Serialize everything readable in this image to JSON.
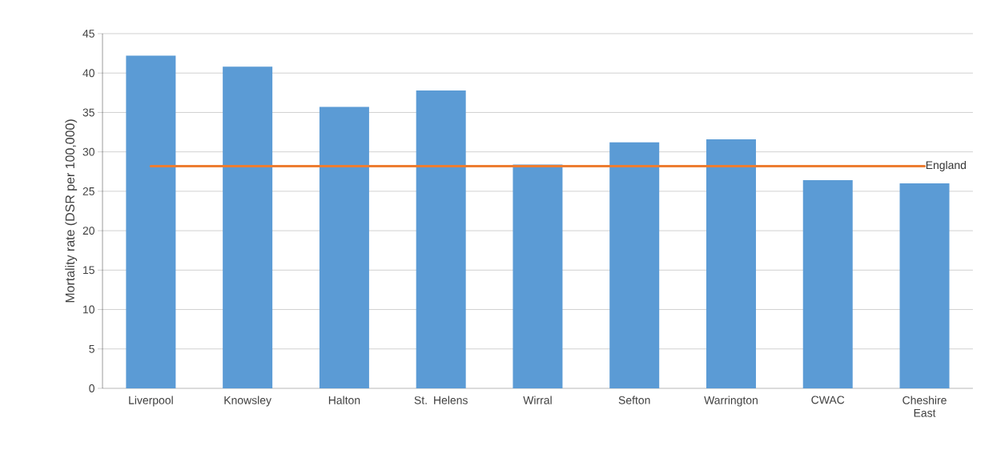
{
  "chart_data": {
    "type": "bar",
    "ylabel": "Mortality rate (DSR per 100,000)",
    "categories": [
      "Liverpool",
      "Knowsley",
      "Halton",
      "St. Helens",
      "Wirral",
      "Sefton",
      "Warrington",
      "CWAC",
      "Cheshire East"
    ],
    "ylim": [
      0,
      45
    ],
    "yticks": [
      0,
      5,
      10,
      15,
      20,
      25,
      30,
      35,
      40,
      45
    ],
    "grid": "y",
    "series": [
      {
        "color": "#5b9bd5",
        "values": [
          42.2,
          40.8,
          35.7,
          37.8,
          28.4,
          31.2,
          31.6,
          26.4,
          26.0
        ]
      },
      {
        "type": "line",
        "name": "England",
        "color": "#ed7d31",
        "values": [
          28.2,
          28.2,
          28.2,
          28.2,
          28.2,
          28.2,
          28.2,
          28.2,
          28.2
        ]
      }
    ]
  }
}
